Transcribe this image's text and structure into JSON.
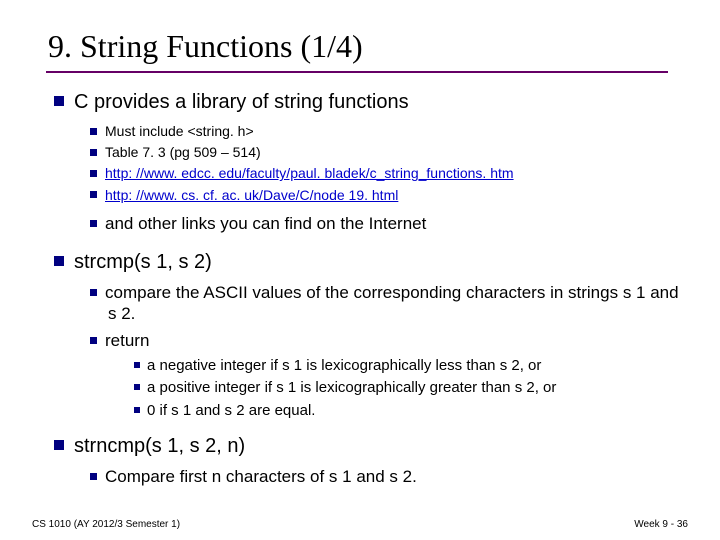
{
  "title": "9. String Functions (1/4)",
  "section1": {
    "heading": "C provides a library of string functions",
    "items": [
      "Must include <string. h>",
      "Table 7. 3 (pg 509 – 514)"
    ],
    "links": [
      "http: //www. edcc. edu/faculty/paul. bladek/c_string_functions. htm",
      "http: //www. cs. cf. ac. uk/Dave/C/node 19. html"
    ],
    "tail": "and other links you can find on the Internet"
  },
  "section2": {
    "heading": "strcmp(s 1, s 2)",
    "items": [
      "compare the ASCII values of the corresponding characters in strings s 1 and s 2.",
      "return"
    ],
    "subitems": [
      "a negative integer if s 1 is lexicographically less than s 2, or",
      "a positive integer if s 1 is lexicographically greater than s 2, or",
      "0 if s 1 and s 2 are equal."
    ]
  },
  "section3": {
    "heading": "strncmp(s 1, s 2, n)",
    "item": "Compare first n characters of s 1 and s 2."
  },
  "footer": {
    "left": "CS 1010 (AY 2012/3 Semester 1)",
    "right": "Week 9 - 36"
  },
  "colors": {
    "bullet": "#000080",
    "underline": "#660066",
    "link": "#0000cc",
    "text": "#000000",
    "background": "#ffffff"
  }
}
